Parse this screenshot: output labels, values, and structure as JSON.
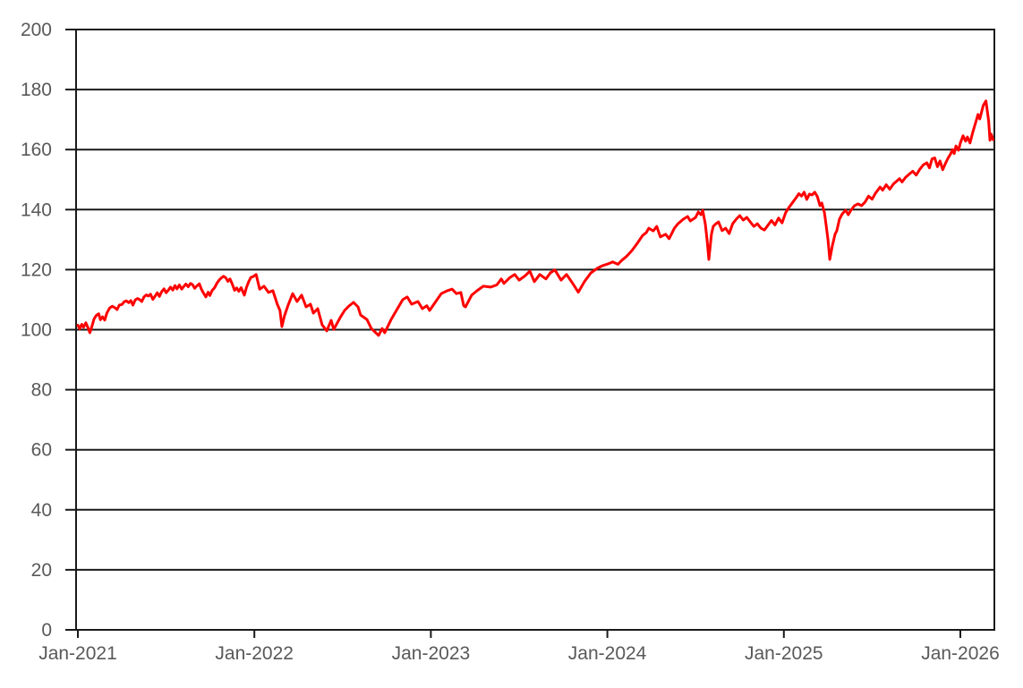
{
  "chart_data": {
    "type": "line",
    "x_axis": {
      "ticks": [
        {
          "t": 0,
          "label": "Jan-2021"
        },
        {
          "t": 1,
          "label": "Jan-2022"
        },
        {
          "t": 2,
          "label": "Jan-2023"
        },
        {
          "t": 3,
          "label": "Jan-2024"
        },
        {
          "t": 4,
          "label": "Jan-2025"
        },
        {
          "t": 5,
          "label": "Jan-2026"
        }
      ],
      "range_t": [
        0,
        5.19
      ]
    },
    "y_axis": {
      "ticks": [
        0,
        20,
        40,
        60,
        80,
        100,
        120,
        140,
        160,
        180,
        200
      ],
      "range": [
        0,
        200
      ]
    },
    "grid": {
      "horizontal": true,
      "vertical": false
    },
    "legend": "none",
    "colors": {
      "line": "#ff0000",
      "grid": "#1a1a1a",
      "axis": "#1a1a1a",
      "tick_labels": "#595959",
      "background": "#ffffff"
    },
    "series": [
      {
        "color": "#ff0000",
        "points": [
          [
            0.0,
            101.5
          ],
          [
            0.01,
            100.3
          ],
          [
            0.022,
            101.8
          ],
          [
            0.032,
            100.8
          ],
          [
            0.045,
            102.3
          ],
          [
            0.058,
            100.6
          ],
          [
            0.068,
            99.0
          ],
          [
            0.08,
            101.2
          ],
          [
            0.092,
            103.6
          ],
          [
            0.105,
            104.8
          ],
          [
            0.118,
            105.3
          ],
          [
            0.128,
            103.3
          ],
          [
            0.14,
            104.3
          ],
          [
            0.152,
            103.2
          ],
          [
            0.165,
            105.6
          ],
          [
            0.18,
            107.2
          ],
          [
            0.195,
            107.8
          ],
          [
            0.21,
            107.3
          ],
          [
            0.222,
            106.7
          ],
          [
            0.235,
            108.2
          ],
          [
            0.25,
            108.4
          ],
          [
            0.262,
            109.3
          ],
          [
            0.275,
            109.6
          ],
          [
            0.288,
            109.0
          ],
          [
            0.3,
            109.7
          ],
          [
            0.312,
            108.2
          ],
          [
            0.325,
            109.9
          ],
          [
            0.338,
            110.4
          ],
          [
            0.35,
            110.0
          ],
          [
            0.362,
            109.4
          ],
          [
            0.375,
            110.9
          ],
          [
            0.388,
            111.6
          ],
          [
            0.4,
            111.2
          ],
          [
            0.412,
            111.8
          ],
          [
            0.425,
            110.1
          ],
          [
            0.438,
            111.2
          ],
          [
            0.45,
            112.3
          ],
          [
            0.462,
            111.1
          ],
          [
            0.475,
            112.7
          ],
          [
            0.488,
            113.6
          ],
          [
            0.5,
            112.3
          ],
          [
            0.512,
            113.1
          ],
          [
            0.525,
            114.2
          ],
          [
            0.538,
            113.2
          ],
          [
            0.55,
            114.7
          ],
          [
            0.562,
            113.6
          ],
          [
            0.575,
            114.9
          ],
          [
            0.588,
            113.5
          ],
          [
            0.6,
            114.4
          ],
          [
            0.612,
            115.2
          ],
          [
            0.625,
            114.3
          ],
          [
            0.638,
            115.4
          ],
          [
            0.65,
            115.0
          ],
          [
            0.662,
            113.8
          ],
          [
            0.675,
            114.6
          ],
          [
            0.688,
            115.3
          ],
          [
            0.7,
            113.5
          ],
          [
            0.712,
            112.2
          ],
          [
            0.725,
            110.9
          ],
          [
            0.738,
            112.5
          ],
          [
            0.748,
            111.4
          ],
          [
            0.76,
            113.0
          ],
          [
            0.775,
            114.0
          ],
          [
            0.788,
            115.5
          ],
          [
            0.8,
            116.5
          ],
          [
            0.812,
            117.2
          ],
          [
            0.825,
            117.8
          ],
          [
            0.838,
            117.3
          ],
          [
            0.85,
            116.1
          ],
          [
            0.862,
            116.9
          ],
          [
            0.875,
            115.2
          ],
          [
            0.888,
            113.1
          ],
          [
            0.9,
            113.9
          ],
          [
            0.912,
            112.8
          ],
          [
            0.925,
            114.0
          ],
          [
            0.943,
            111.5
          ],
          [
            0.955,
            114.0
          ],
          [
            0.968,
            116.0
          ],
          [
            0.98,
            117.4
          ],
          [
            0.99,
            117.6
          ],
          [
            1.0,
            118.0
          ],
          [
            1.01,
            118.4
          ],
          [
            1.03,
            113.5
          ],
          [
            1.055,
            114.5
          ],
          [
            1.08,
            112.4
          ],
          [
            1.105,
            113.0
          ],
          [
            1.13,
            108.5
          ],
          [
            1.145,
            106.4
          ],
          [
            1.156,
            101.0
          ],
          [
            1.17,
            104.5
          ],
          [
            1.19,
            108.0
          ],
          [
            1.217,
            112.0
          ],
          [
            1.242,
            109.4
          ],
          [
            1.268,
            111.5
          ],
          [
            1.293,
            107.6
          ],
          [
            1.318,
            108.5
          ],
          [
            1.334,
            105.5
          ],
          [
            1.359,
            107.0
          ],
          [
            1.384,
            101.6
          ],
          [
            1.41,
            99.6
          ],
          [
            1.435,
            103.1
          ],
          [
            1.45,
            100.1
          ],
          [
            1.486,
            104.0
          ],
          [
            1.511,
            106.4
          ],
          [
            1.536,
            107.9
          ],
          [
            1.562,
            109.1
          ],
          [
            1.587,
            107.6
          ],
          [
            1.602,
            104.9
          ],
          [
            1.638,
            103.4
          ],
          [
            1.663,
            100.4
          ],
          [
            1.704,
            98.1
          ],
          [
            1.724,
            100.4
          ],
          [
            1.739,
            99.0
          ],
          [
            1.775,
            103.4
          ],
          [
            1.805,
            106.4
          ],
          [
            1.841,
            110.0
          ],
          [
            1.866,
            110.9
          ],
          [
            1.891,
            108.5
          ],
          [
            1.927,
            109.4
          ],
          [
            1.952,
            107.0
          ],
          [
            1.977,
            108.0
          ],
          [
            1.993,
            106.4
          ],
          [
            2.028,
            109.4
          ],
          [
            2.059,
            112.0
          ],
          [
            2.094,
            113.0
          ],
          [
            2.12,
            113.5
          ],
          [
            2.145,
            112.0
          ],
          [
            2.17,
            112.4
          ],
          [
            2.186,
            108.0
          ],
          [
            2.196,
            107.6
          ],
          [
            2.231,
            111.5
          ],
          [
            2.262,
            113.0
          ],
          [
            2.297,
            114.5
          ],
          [
            2.338,
            114.2
          ],
          [
            2.373,
            114.9
          ],
          [
            2.399,
            116.9
          ],
          [
            2.414,
            115.4
          ],
          [
            2.449,
            117.4
          ],
          [
            2.475,
            118.4
          ],
          [
            2.5,
            116.5
          ],
          [
            2.535,
            118.0
          ],
          [
            2.561,
            119.5
          ],
          [
            2.586,
            116.0
          ],
          [
            2.617,
            118.4
          ],
          [
            2.652,
            116.9
          ],
          [
            2.678,
            119.0
          ],
          [
            2.703,
            119.9
          ],
          [
            2.738,
            116.5
          ],
          [
            2.769,
            118.4
          ],
          [
            2.804,
            115.4
          ],
          [
            2.835,
            112.5
          ],
          [
            2.87,
            116.0
          ],
          [
            2.906,
            118.9
          ],
          [
            2.941,
            120.4
          ],
          [
            2.972,
            121.3
          ],
          [
            3.007,
            122.0
          ],
          [
            3.03,
            122.6
          ],
          [
            3.06,
            121.8
          ],
          [
            3.08,
            123.0
          ],
          [
            3.11,
            124.5
          ],
          [
            3.14,
            126.4
          ],
          [
            3.17,
            128.8
          ],
          [
            3.2,
            131.4
          ],
          [
            3.22,
            132.3
          ],
          [
            3.235,
            133.8
          ],
          [
            3.26,
            132.9
          ],
          [
            3.28,
            134.4
          ],
          [
            3.3,
            130.9
          ],
          [
            3.33,
            131.8
          ],
          [
            3.35,
            130.3
          ],
          [
            3.38,
            133.8
          ],
          [
            3.4,
            135.3
          ],
          [
            3.43,
            136.8
          ],
          [
            3.455,
            137.7
          ],
          [
            3.47,
            136.2
          ],
          [
            3.5,
            137.4
          ],
          [
            3.515,
            139.2
          ],
          [
            3.53,
            138.3
          ],
          [
            3.54,
            139.8
          ],
          [
            3.555,
            135.3
          ],
          [
            3.565,
            130.0
          ],
          [
            3.575,
            123.4
          ],
          [
            3.59,
            131.8
          ],
          [
            3.6,
            134.4
          ],
          [
            3.615,
            135.3
          ],
          [
            3.63,
            135.9
          ],
          [
            3.65,
            133.0
          ],
          [
            3.67,
            133.8
          ],
          [
            3.69,
            132.0
          ],
          [
            3.71,
            135.3
          ],
          [
            3.73,
            136.8
          ],
          [
            3.75,
            138.0
          ],
          [
            3.77,
            136.5
          ],
          [
            3.79,
            137.4
          ],
          [
            3.81,
            135.9
          ],
          [
            3.83,
            134.4
          ],
          [
            3.85,
            135.3
          ],
          [
            3.87,
            133.8
          ],
          [
            3.89,
            133.2
          ],
          [
            3.91,
            134.8
          ],
          [
            3.93,
            136.4
          ],
          [
            3.95,
            134.9
          ],
          [
            3.97,
            137.2
          ],
          [
            3.99,
            135.6
          ],
          [
            4.01,
            139.0
          ],
          [
            4.03,
            140.8
          ],
          [
            4.05,
            142.4
          ],
          [
            4.07,
            144.0
          ],
          [
            4.085,
            145.3
          ],
          [
            4.1,
            144.5
          ],
          [
            4.115,
            145.8
          ],
          [
            4.13,
            143.4
          ],
          [
            4.145,
            145.2
          ],
          [
            4.16,
            144.9
          ],
          [
            4.175,
            145.8
          ],
          [
            4.19,
            144.3
          ],
          [
            4.205,
            141.3
          ],
          [
            4.215,
            142.2
          ],
          [
            4.23,
            138.9
          ],
          [
            4.24,
            134.7
          ],
          [
            4.25,
            130.0
          ],
          [
            4.26,
            123.4
          ],
          [
            4.275,
            128.0
          ],
          [
            4.29,
            131.8
          ],
          [
            4.3,
            133.0
          ],
          [
            4.315,
            136.8
          ],
          [
            4.33,
            138.5
          ],
          [
            4.35,
            139.8
          ],
          [
            4.365,
            138.3
          ],
          [
            4.38,
            139.8
          ],
          [
            4.4,
            141.3
          ],
          [
            4.42,
            141.9
          ],
          [
            4.44,
            141.3
          ],
          [
            4.46,
            142.5
          ],
          [
            4.48,
            144.5
          ],
          [
            4.5,
            143.5
          ],
          [
            4.52,
            145.5
          ],
          [
            4.545,
            147.5
          ],
          [
            4.56,
            146.5
          ],
          [
            4.58,
            148.3
          ],
          [
            4.6,
            146.8
          ],
          [
            4.62,
            148.5
          ],
          [
            4.655,
            150.3
          ],
          [
            4.67,
            149.2
          ],
          [
            4.69,
            150.8
          ],
          [
            4.71,
            151.8
          ],
          [
            4.73,
            152.8
          ],
          [
            4.75,
            151.5
          ],
          [
            4.77,
            153.4
          ],
          [
            4.79,
            154.9
          ],
          [
            4.81,
            155.6
          ],
          [
            4.825,
            153.9
          ],
          [
            4.84,
            156.9
          ],
          [
            4.855,
            157.2
          ],
          [
            4.87,
            154.3
          ],
          [
            4.885,
            156.2
          ],
          [
            4.9,
            153.3
          ],
          [
            4.915,
            155.3
          ],
          [
            4.93,
            157.1
          ],
          [
            4.945,
            158.6
          ],
          [
            4.955,
            160.0
          ],
          [
            4.965,
            158.7
          ],
          [
            4.975,
            161.2
          ],
          [
            4.99,
            159.8
          ],
          [
            5.0,
            162.2
          ],
          [
            5.015,
            164.6
          ],
          [
            5.03,
            162.8
          ],
          [
            5.04,
            164.2
          ],
          [
            5.055,
            162.2
          ],
          [
            5.07,
            165.7
          ],
          [
            5.09,
            169.6
          ],
          [
            5.1,
            171.7
          ],
          [
            5.11,
            170.2
          ],
          [
            5.13,
            174.7
          ],
          [
            5.145,
            176.2
          ],
          [
            5.16,
            169.6
          ],
          [
            5.168,
            163.1
          ],
          [
            5.175,
            165.2
          ],
          [
            5.185,
            163.3
          ]
        ]
      }
    ]
  }
}
